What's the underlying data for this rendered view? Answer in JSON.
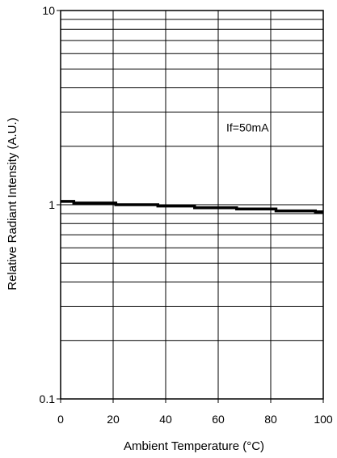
{
  "chart_data": {
    "type": "line",
    "xlabel": "Ambient Temperature (°C)",
    "ylabel": "Relative Radiant Intensity (A.U.)",
    "xlim": [
      0,
      100
    ],
    "ylim": [
      0.1,
      10
    ],
    "yscale": "log",
    "grid": true,
    "x_ticks": [
      0,
      20,
      40,
      60,
      80,
      100
    ],
    "x_tick_labels": [
      "0",
      "20",
      "40",
      "60",
      "80",
      "100"
    ],
    "y_ticks": [
      0.1,
      1,
      10
    ],
    "y_tick_labels": [
      "0.1",
      "1",
      "10"
    ],
    "annotations": [
      {
        "text": "If=50mA",
        "x": 60,
        "y": 2.5
      }
    ],
    "series": [
      {
        "color": "#000000",
        "points": [
          [
            0,
            1.04
          ],
          [
            5,
            1.04
          ],
          [
            5,
            1.02
          ],
          [
            21,
            1.02
          ],
          [
            21,
            1.0
          ],
          [
            37,
            1.0
          ],
          [
            37,
            0.985
          ],
          [
            51,
            0.985
          ],
          [
            51,
            0.965
          ],
          [
            67,
            0.965
          ],
          [
            67,
            0.95
          ],
          [
            82,
            0.95
          ],
          [
            82,
            0.93
          ],
          [
            97,
            0.93
          ],
          [
            97,
            0.92
          ],
          [
            100,
            0.92
          ]
        ]
      }
    ]
  }
}
